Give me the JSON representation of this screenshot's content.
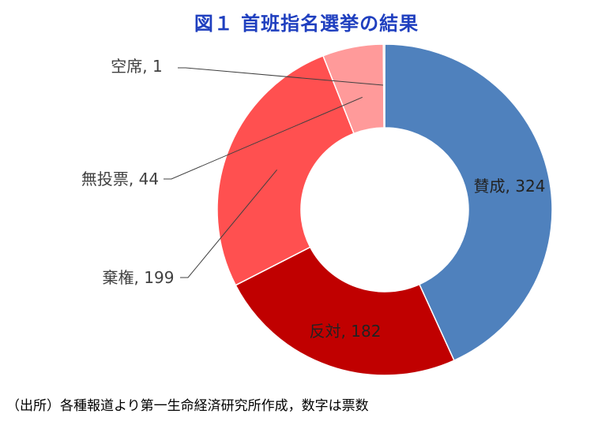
{
  "chart_data": {
    "type": "pie",
    "title": "図１ 首班指名選挙の結果",
    "categories": [
      "賛成",
      "反対",
      "棄権",
      "無投票",
      "空席"
    ],
    "values": [
      324,
      182,
      199,
      44,
      1
    ],
    "colors": [
      "#4f81bd",
      "#c00000",
      "#ff5050",
      "#ff9a9a",
      "#b0b0b0"
    ],
    "donut": true,
    "labels": [
      "賛成, 324",
      "反対, 182",
      "棄権, 199",
      "無投票, 44",
      "空席, 1"
    ]
  },
  "source_note": "（出所）各種報道より第一生命経済研究所作成，数字は票数"
}
